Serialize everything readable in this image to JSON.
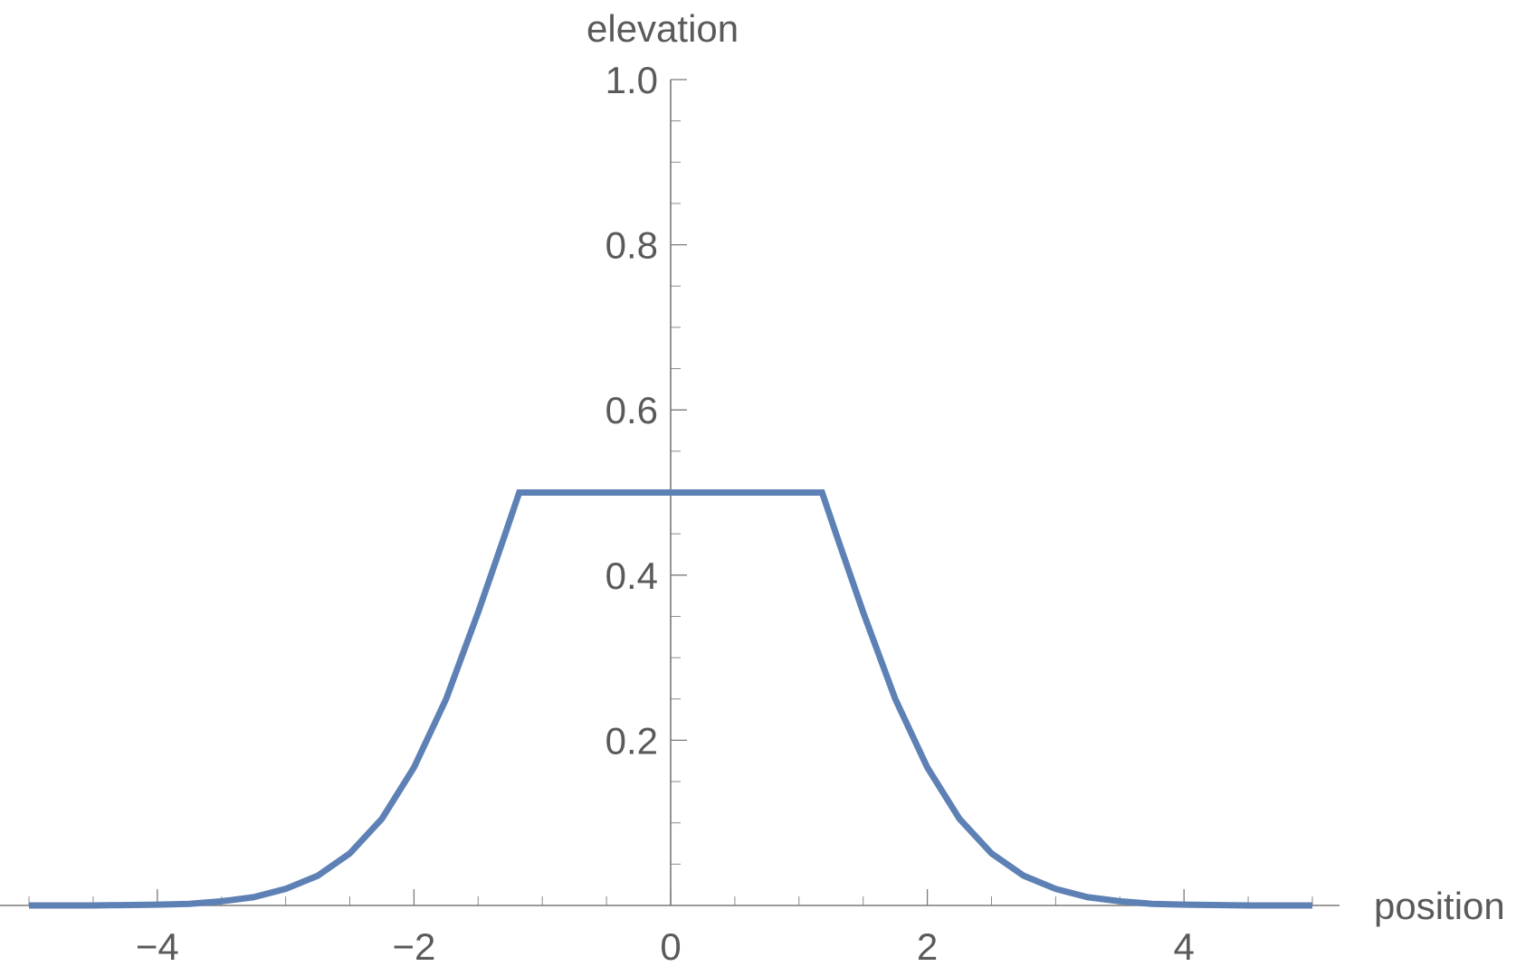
{
  "chart_data": {
    "type": "line",
    "title": "",
    "xlabel": "position",
    "ylabel": "elevation",
    "xlim": [
      -5,
      5
    ],
    "ylim": [
      0,
      1.0
    ],
    "x_ticks": [
      -4,
      -2,
      0,
      2,
      4
    ],
    "x_tick_labels": [
      "−4",
      "−2",
      "0",
      "2",
      "4"
    ],
    "x_minor_step": 0.5,
    "y_ticks": [
      0.2,
      0.4,
      0.6,
      0.8,
      1.0
    ],
    "y_tick_labels": [
      "0.2",
      "0.4",
      "0.6",
      "0.8",
      "1.0"
    ],
    "y_minor_step": 0.05,
    "grid": false,
    "legend": "none",
    "series": [
      {
        "color": "#5e81b5",
        "x": [
          -5.0,
          -4.5,
          -4.0,
          -3.75,
          -3.5,
          -3.25,
          -3.0,
          -2.75,
          -2.5,
          -2.25,
          -2.0,
          -1.75,
          -1.5,
          -1.3,
          -1.18,
          1.18,
          1.3,
          1.5,
          1.75,
          2.0,
          2.25,
          2.5,
          2.75,
          3.0,
          3.25,
          3.5,
          3.75,
          4.0,
          4.5,
          5.0
        ],
        "y": [
          0.0,
          0.0,
          0.001,
          0.002,
          0.005,
          0.01,
          0.02,
          0.036,
          0.063,
          0.105,
          0.167,
          0.25,
          0.355,
          0.445,
          0.5,
          0.5,
          0.445,
          0.355,
          0.25,
          0.167,
          0.105,
          0.063,
          0.036,
          0.02,
          0.01,
          0.005,
          0.002,
          0.001,
          0.0,
          0.0
        ]
      }
    ]
  }
}
